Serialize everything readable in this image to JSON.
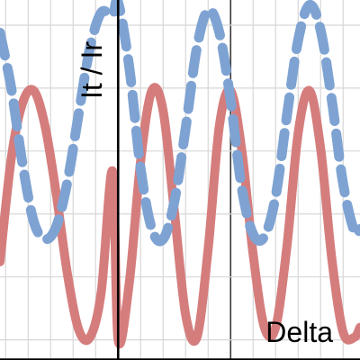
{
  "chart_data": {
    "type": "line",
    "title": "",
    "xlabel": "Delta",
    "ylabel": "It / Ir",
    "xlim": [
      -5.25,
      10.75
    ],
    "ylim": [
      -0.08,
      1.35
    ],
    "grid": true,
    "legend": "none",
    "series": [
      {
        "color": "#d57d7d",
        "style": "solid",
        "x": [
          -5.25,
          -4.75,
          -4.25,
          -3.75,
          -3.25,
          -2.75,
          -2.25,
          -1.75,
          -1.25,
          -0.75,
          -0.25,
          0,
          0.5,
          1,
          1.5,
          2,
          2.5,
          3,
          3.5,
          4,
          4.5,
          5,
          5.5,
          6,
          6.5,
          7,
          7.5,
          8,
          8.5,
          9,
          9.5,
          10,
          10.5,
          10.75
        ],
        "y": [
          0.31,
          0.72,
          0.94,
          0.99,
          0.85,
          0.58,
          0.26,
          0.04,
          0.01,
          0.19,
          0.67,
          0.0,
          0.23,
          0.71,
          0.99,
          0.91,
          0.51,
          0.1,
          0.01,
          0.36,
          0.85,
          0.99,
          0.75,
          0.34,
          0.05,
          0.05,
          0.37,
          0.82,
          0.99,
          0.76,
          0.32,
          0.03,
          0.01,
          0.05
        ]
      },
      {
        "color": "#7ea3d3",
        "style": "dashed",
        "x": [
          -5.25,
          -4.75,
          -4.25,
          -3.75,
          -3.25,
          -2.75,
          -2.25,
          -1.75,
          -1.25,
          -0.75,
          -0.25,
          0,
          0.5,
          1,
          1.5,
          2,
          2.5,
          3,
          3.5,
          4,
          4.5,
          5,
          5.5,
          6,
          6.5,
          7,
          7.5,
          8,
          8.5,
          9,
          9.5,
          10,
          10.5,
          10.75
        ],
        "y": [
          1.22,
          1.0,
          0.7,
          0.47,
          0.4,
          0.45,
          0.63,
          0.9,
          1.16,
          1.3,
          1.29,
          1.34,
          1.08,
          0.68,
          0.44,
          0.4,
          0.55,
          0.84,
          1.16,
          1.31,
          1.22,
          0.95,
          0.6,
          0.42,
          0.41,
          0.57,
          0.89,
          1.19,
          1.33,
          1.23,
          0.95,
          0.62,
          0.43,
          0.44
        ]
      }
    ]
  }
}
